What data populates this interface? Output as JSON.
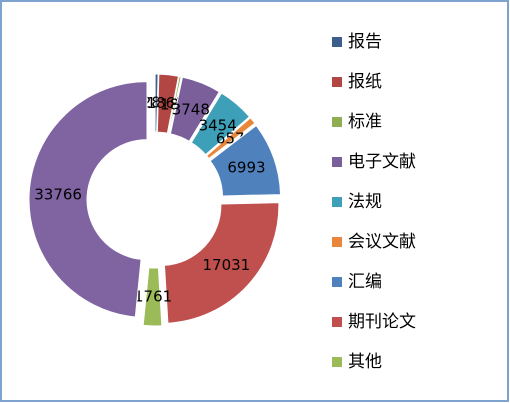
{
  "chart_data": {
    "type": "doughnut",
    "categories": [
      "报告",
      "报纸",
      "标准",
      "电子文献",
      "法规",
      "会议文献",
      "汇编",
      "期刊论文",
      "其他",
      null
    ],
    "values": [
      280,
      1861,
      181,
      3748,
      3454,
      657,
      6993,
      17031,
      1761,
      33766
    ],
    "colors": [
      "#3B5E8C",
      "#B24643",
      "#8FAE52",
      "#7A5F9A",
      "#3EA0B8",
      "#E8873C",
      "#4F81BD",
      "#C0504D",
      "#9BBB59",
      "#8064A2"
    ],
    "legend": "right"
  }
}
